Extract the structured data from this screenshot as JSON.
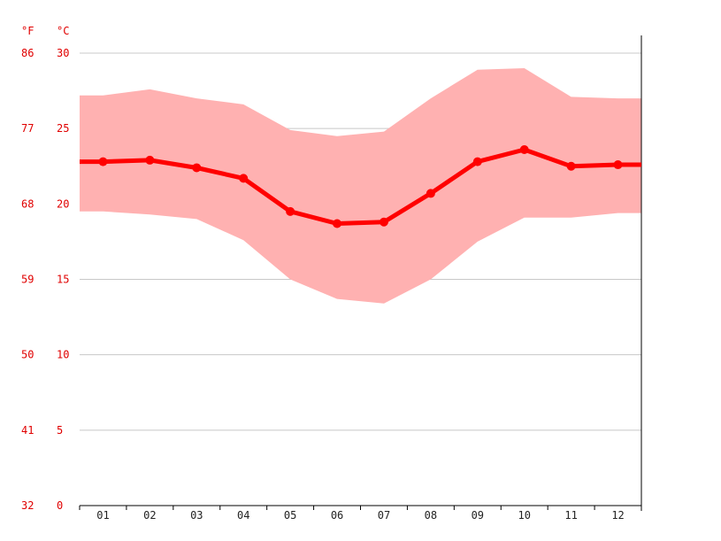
{
  "chart_data": {
    "type": "line",
    "title": "",
    "xlabel": "",
    "ylabel": "",
    "unit_labels": {
      "fahrenheit": "°F",
      "celsius": "°C"
    },
    "categories": [
      "01",
      "02",
      "03",
      "04",
      "05",
      "06",
      "07",
      "08",
      "09",
      "10",
      "11",
      "12"
    ],
    "ylim": [
      0,
      30
    ],
    "y_ticks_c": [
      "0",
      "5",
      "10",
      "15",
      "20",
      "25",
      "30"
    ],
    "y_ticks_f": [
      "32",
      "41",
      "50",
      "59",
      "68",
      "77",
      "86"
    ],
    "grid": true,
    "series": [
      {
        "values": [
          22.8,
          22.9,
          22.4,
          21.7,
          19.5,
          18.7,
          18.8,
          20.7,
          22.8,
          23.6,
          22.5,
          22.6
        ]
      }
    ],
    "range_band": {
      "max": [
        27.2,
        27.6,
        27.0,
        26.6,
        24.9,
        24.5,
        24.8,
        27.0,
        28.9,
        29.0,
        27.1,
        27.0
      ],
      "min": [
        19.5,
        19.3,
        19.0,
        17.6,
        15.0,
        13.7,
        13.4,
        15.0,
        17.5,
        19.1,
        19.1,
        19.4
      ]
    },
    "colors": {
      "line": "#ff0000",
      "band": "#ffb1b1",
      "grid": "#c8c8c8",
      "tick_c": "#e00000",
      "tick_x": "#222222"
    }
  }
}
